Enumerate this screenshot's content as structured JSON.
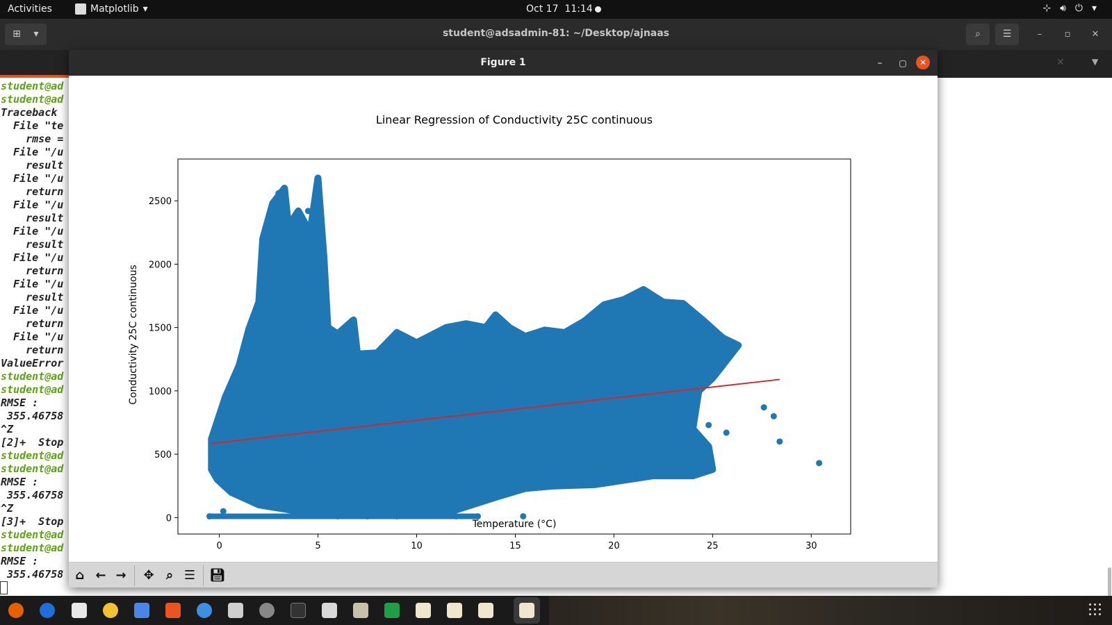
{
  "topbar": {
    "activities": "Activities",
    "app_name": "Matplotlib",
    "date": "Oct 17",
    "time": "11:14"
  },
  "terminal": {
    "title": "student@adsadmin-81: ~/Desktop/ajnaas",
    "lines": [
      {
        "text": "student@ad",
        "green": true
      },
      {
        "text": "student@ad",
        "green": true
      },
      {
        "text": "Traceback ",
        "green": false
      },
      {
        "text": "  File \"te",
        "green": false
      },
      {
        "text": "    rmse =",
        "green": false
      },
      {
        "text": "  File \"/u",
        "green": false
      },
      {
        "text": "    result",
        "green": false
      },
      {
        "text": "  File \"/u",
        "green": false
      },
      {
        "text": "    return",
        "green": false
      },
      {
        "text": "  File \"/u",
        "green": false
      },
      {
        "text": "    result",
        "green": false
      },
      {
        "text": "  File \"/u",
        "green": false
      },
      {
        "text": "    result",
        "green": false
      },
      {
        "text": "  File \"/u",
        "green": false
      },
      {
        "text": "    return",
        "green": false
      },
      {
        "text": "  File \"/u",
        "green": false
      },
      {
        "text": "    result",
        "green": false
      },
      {
        "text": "  File \"/u",
        "green": false
      },
      {
        "text": "    return",
        "green": false
      },
      {
        "text": "  File \"/u",
        "green": false
      },
      {
        "text": "    return",
        "green": false
      },
      {
        "text": "ValueError",
        "green": false
      },
      {
        "text": "student@ad",
        "green": true
      },
      {
        "text": "student@ad",
        "green": true
      },
      {
        "text": "RMSE :",
        "green": false
      },
      {
        "text": " 355.46758",
        "green": false
      },
      {
        "text": "^Z",
        "green": false
      },
      {
        "text": "[2]+  Stop",
        "green": false
      },
      {
        "text": "student@ad",
        "green": true
      },
      {
        "text": "student@ad",
        "green": true
      },
      {
        "text": "RMSE :",
        "green": false
      },
      {
        "text": " 355.46758",
        "green": false
      },
      {
        "text": "^Z",
        "green": false
      },
      {
        "text": "[3]+  Stop",
        "green": false
      },
      {
        "text": "student@ad",
        "green": true
      },
      {
        "text": "student@ad",
        "green": true
      },
      {
        "text": "RMSE :",
        "green": false
      },
      {
        "text": " 355.46758",
        "green": false
      }
    ]
  },
  "figure": {
    "window_title": "Figure 1",
    "toolbar": [
      "home-icon",
      "back-icon",
      "forward-icon",
      "pan-icon",
      "zoom-icon",
      "configure-icon",
      "save-icon"
    ]
  },
  "chart_data": {
    "type": "scatter",
    "title": "Linear Regression of Conductivity 25C continuous",
    "xlabel": "Temperature (°C)",
    "ylabel": "Conductivity 25C continuous",
    "xlim": [
      -2.1,
      32
    ],
    "ylim": [
      -130,
      2830
    ],
    "xticks": [
      0,
      5,
      10,
      15,
      20,
      25,
      30
    ],
    "yticks": [
      0,
      500,
      1000,
      1500,
      2000,
      2500
    ],
    "grid": false,
    "scatter_color": "#1f77b4",
    "line_color": "#d62728",
    "regression_line": {
      "x": [
        -0.4,
        28.4
      ],
      "y": [
        585,
        1090
      ]
    },
    "density_envelope": {
      "upper": [
        [
          -0.4,
          620
        ],
        [
          0.3,
          950
        ],
        [
          1.0,
          1200
        ],
        [
          1.5,
          1490
        ],
        [
          2.0,
          1700
        ],
        [
          2.2,
          2200
        ],
        [
          2.7,
          2480
        ],
        [
          3.3,
          2600
        ],
        [
          3.5,
          2300
        ],
        [
          4.0,
          2420
        ],
        [
          4.6,
          2250
        ],
        [
          5.0,
          2680
        ],
        [
          5.3,
          2050
        ],
        [
          5.5,
          1500
        ],
        [
          6.0,
          1450
        ],
        [
          6.8,
          1560
        ],
        [
          7.0,
          1290
        ],
        [
          8.0,
          1300
        ],
        [
          9.0,
          1460
        ],
        [
          10.0,
          1380
        ],
        [
          11.5,
          1500
        ],
        [
          12.5,
          1530
        ],
        [
          13.5,
          1500
        ],
        [
          14.0,
          1600
        ],
        [
          14.7,
          1500
        ],
        [
          15.5,
          1430
        ],
        [
          16.5,
          1480
        ],
        [
          17.5,
          1460
        ],
        [
          18.5,
          1550
        ],
        [
          19.5,
          1680
        ],
        [
          20.5,
          1720
        ],
        [
          21.5,
          1800
        ],
        [
          22.5,
          1700
        ],
        [
          23.5,
          1690
        ],
        [
          24.5,
          1560
        ],
        [
          25.5,
          1420
        ],
        [
          26.3,
          1360
        ],
        [
          25.5,
          1200
        ],
        [
          25.0,
          1100
        ],
        [
          24.3,
          1000
        ],
        [
          24.0,
          700
        ],
        [
          24.8,
          560
        ],
        [
          25.0,
          380
        ],
        [
          24.0,
          330
        ],
        [
          22.0,
          330
        ],
        [
          19.0,
          260
        ],
        [
          17.0,
          250
        ],
        [
          15.5,
          230
        ],
        [
          14.0,
          160
        ],
        [
          12.0,
          60
        ],
        [
          10.0,
          30
        ],
        [
          8.0,
          20
        ],
        [
          6.0,
          30
        ],
        [
          4.0,
          50
        ],
        [
          2.0,
          100
        ],
        [
          0.6,
          200
        ],
        [
          -0.1,
          300
        ],
        [
          -0.4,
          380
        ]
      ],
      "spikes": [
        [
          3.0,
          2560
        ],
        [
          3.3,
          2600
        ],
        [
          4.5,
          2420
        ],
        [
          5.0,
          2680
        ]
      ],
      "baseline_dots": [
        [
          -0.5,
          10
        ],
        [
          6.0,
          10
        ],
        [
          7.5,
          10
        ],
        [
          9.0,
          10
        ],
        [
          12.0,
          10
        ],
        [
          13.1,
          10
        ],
        [
          15.4,
          10
        ],
        [
          0.2,
          50
        ],
        [
          5.0,
          12
        ]
      ],
      "outliers": [
        [
          27.6,
          870
        ],
        [
          28.1,
          800
        ],
        [
          28.4,
          600
        ],
        [
          25.7,
          670
        ],
        [
          24.8,
          730
        ],
        [
          30.4,
          430
        ],
        [
          26.0,
          1360
        ]
      ]
    }
  }
}
